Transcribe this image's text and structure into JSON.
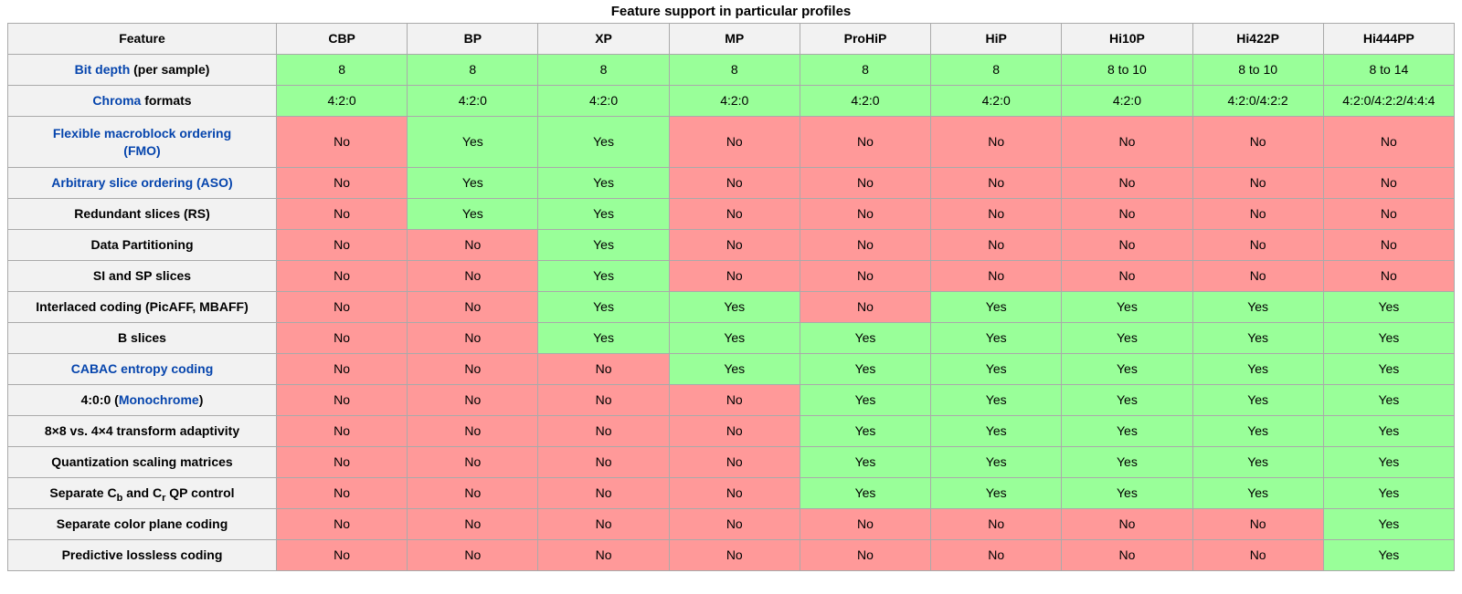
{
  "title": "Feature support in particular profiles",
  "colors": {
    "yes_bg": "#99FF99",
    "no_bg": "#FF9999",
    "header_bg": "#F2F2F2",
    "border": "#AAAAAA",
    "link": "#0645AD",
    "text": "#000000"
  },
  "table": {
    "columns": [
      "Feature",
      "CBP",
      "BP",
      "XP",
      "MP",
      "ProHiP",
      "HiP",
      "Hi10P",
      "Hi422P",
      "Hi444PP"
    ],
    "rows": [
      {
        "feature": [
          {
            "t": "Bit depth",
            "link": true
          },
          {
            "t": " (per sample)"
          }
        ],
        "cells": [
          "8",
          "8",
          "8",
          "8",
          "8",
          "8",
          "8 to 10",
          "8 to 10",
          "8 to 14"
        ]
      },
      {
        "feature": [
          {
            "t": "Chroma",
            "link": true
          },
          {
            "t": " formats"
          }
        ],
        "cells": [
          "4:2:0",
          "4:2:0",
          "4:2:0",
          "4:2:0",
          "4:2:0",
          "4:2:0",
          "4:2:0",
          "4:2:0/4:2:2",
          "4:2:0/4:2:2/4:4:4"
        ]
      },
      {
        "feature": [
          {
            "t": "Flexible macroblock ordering",
            "link": true
          },
          {
            "t": "(FMO)",
            "link": true
          }
        ],
        "stack": true,
        "cells": [
          "No",
          "Yes",
          "Yes",
          "No",
          "No",
          "No",
          "No",
          "No",
          "No"
        ]
      },
      {
        "feature": [
          {
            "t": "Arbitrary slice ordering (ASO)",
            "link": true
          }
        ],
        "cells": [
          "No",
          "Yes",
          "Yes",
          "No",
          "No",
          "No",
          "No",
          "No",
          "No"
        ]
      },
      {
        "feature": [
          {
            "t": "Redundant slices (RS)"
          }
        ],
        "cells": [
          "No",
          "Yes",
          "Yes",
          "No",
          "No",
          "No",
          "No",
          "No",
          "No"
        ]
      },
      {
        "feature": [
          {
            "t": "Data Partitioning"
          }
        ],
        "cells": [
          "No",
          "No",
          "Yes",
          "No",
          "No",
          "No",
          "No",
          "No",
          "No"
        ]
      },
      {
        "feature": [
          {
            "t": "SI and SP slices"
          }
        ],
        "cells": [
          "No",
          "No",
          "Yes",
          "No",
          "No",
          "No",
          "No",
          "No",
          "No"
        ]
      },
      {
        "feature": [
          {
            "t": "Interlaced coding (PicAFF, MBAFF)"
          }
        ],
        "cells": [
          "No",
          "No",
          "Yes",
          "Yes",
          "No",
          "Yes",
          "Yes",
          "Yes",
          "Yes"
        ]
      },
      {
        "feature": [
          {
            "t": "B slices"
          }
        ],
        "cells": [
          "No",
          "No",
          "Yes",
          "Yes",
          "Yes",
          "Yes",
          "Yes",
          "Yes",
          "Yes"
        ]
      },
      {
        "feature": [
          {
            "t": "CABAC entropy coding",
            "link": true
          }
        ],
        "cells": [
          "No",
          "No",
          "No",
          "Yes",
          "Yes",
          "Yes",
          "Yes",
          "Yes",
          "Yes"
        ]
      },
      {
        "feature": [
          {
            "t": "4:0:0 ("
          },
          {
            "t": "Monochrome",
            "link": true
          },
          {
            "t": ")"
          }
        ],
        "cells": [
          "No",
          "No",
          "No",
          "No",
          "Yes",
          "Yes",
          "Yes",
          "Yes",
          "Yes"
        ]
      },
      {
        "feature": [
          {
            "t": "8×8 vs. 4×4 transform adaptivity"
          }
        ],
        "cells": [
          "No",
          "No",
          "No",
          "No",
          "Yes",
          "Yes",
          "Yes",
          "Yes",
          "Yes"
        ]
      },
      {
        "feature": [
          {
            "t": "Quantization scaling matrices"
          }
        ],
        "cells": [
          "No",
          "No",
          "No",
          "No",
          "Yes",
          "Yes",
          "Yes",
          "Yes",
          "Yes"
        ]
      },
      {
        "feature": [
          {
            "t": "Separate C"
          },
          {
            "t": "b",
            "sub": true
          },
          {
            "t": " and C"
          },
          {
            "t": "r",
            "sub": true
          },
          {
            "t": " QP control"
          }
        ],
        "cells": [
          "No",
          "No",
          "No",
          "No",
          "Yes",
          "Yes",
          "Yes",
          "Yes",
          "Yes"
        ]
      },
      {
        "feature": [
          {
            "t": "Separate color plane coding"
          }
        ],
        "cells": [
          "No",
          "No",
          "No",
          "No",
          "No",
          "No",
          "No",
          "No",
          "Yes"
        ]
      },
      {
        "feature": [
          {
            "t": "Predictive lossless coding"
          }
        ],
        "cells": [
          "No",
          "No",
          "No",
          "No",
          "No",
          "No",
          "No",
          "No",
          "Yes"
        ]
      }
    ]
  }
}
